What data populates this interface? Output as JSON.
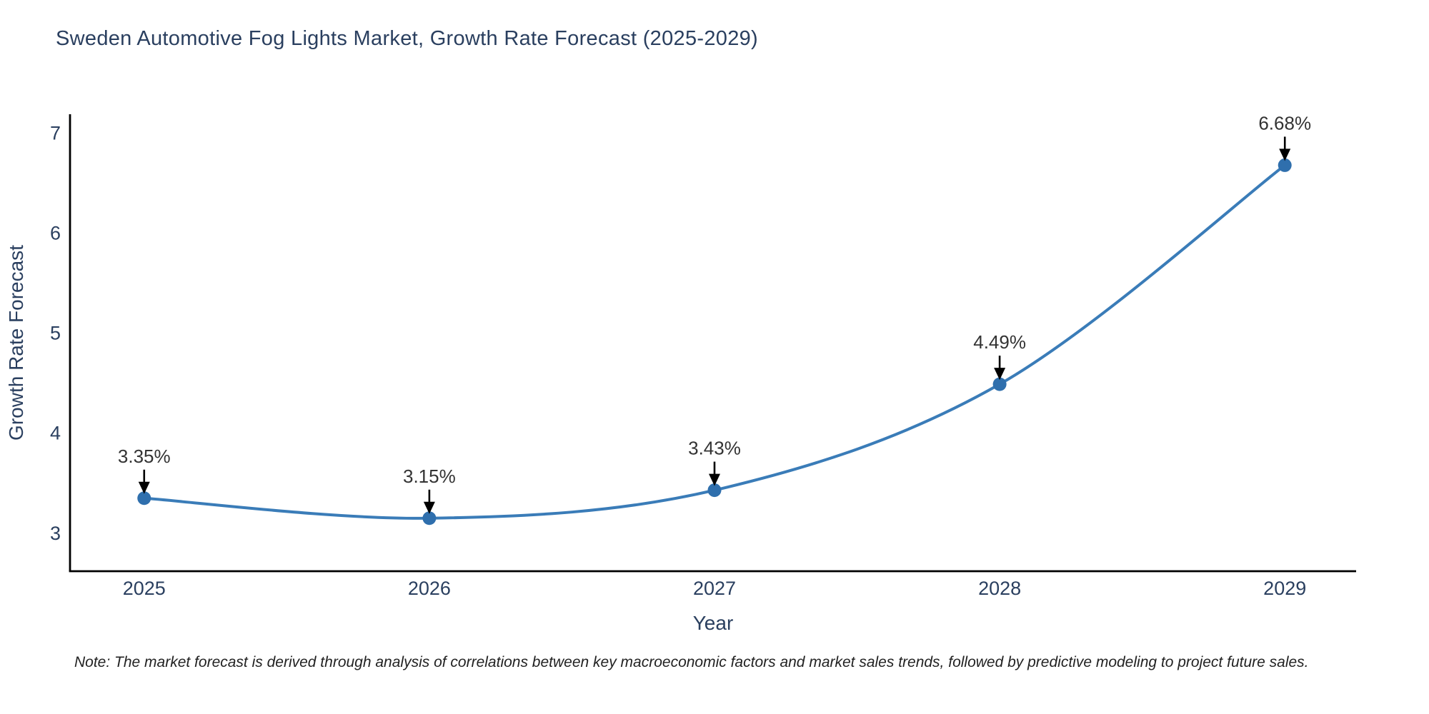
{
  "title": "Sweden Automotive Fog Lights Market, Growth Rate Forecast (2025-2029)",
  "note": "Note: The market forecast is derived through analysis of correlations between key macroeconomic factors and market sales trends, followed by predictive modeling to project future sales.",
  "chart_data": {
    "type": "line",
    "title": "Sweden Automotive Fog Lights Market, Growth Rate Forecast (2025-2029)",
    "xlabel": "Year",
    "ylabel": "Growth Rate Forecast",
    "categories": [
      2025,
      2026,
      2027,
      2028,
      2029
    ],
    "values": [
      3.35,
      3.15,
      3.43,
      4.49,
      6.68
    ],
    "data_labels": [
      "3.35%",
      "3.15%",
      "3.43%",
      "4.49%",
      "6.68%"
    ],
    "yticks": [
      3,
      4,
      5,
      6,
      7
    ],
    "ylim": [
      2.62,
      7.19
    ],
    "xlim": [
      2024.74,
      2029.25
    ],
    "line_shape": "spline",
    "grid": false,
    "legend_position": "none",
    "annotation_style": "value label with downward black arrow onto each marker",
    "colors": {
      "line": "#3a7cb8",
      "marker": "#2f6fad",
      "axis": "#000000",
      "title_text": "#2a3f5f",
      "tick_text": "#2a3f5f",
      "axis_title_text": "#2a3f5f",
      "annotation_text": "#333333",
      "arrow": "#000000",
      "background": "#ffffff"
    }
  }
}
